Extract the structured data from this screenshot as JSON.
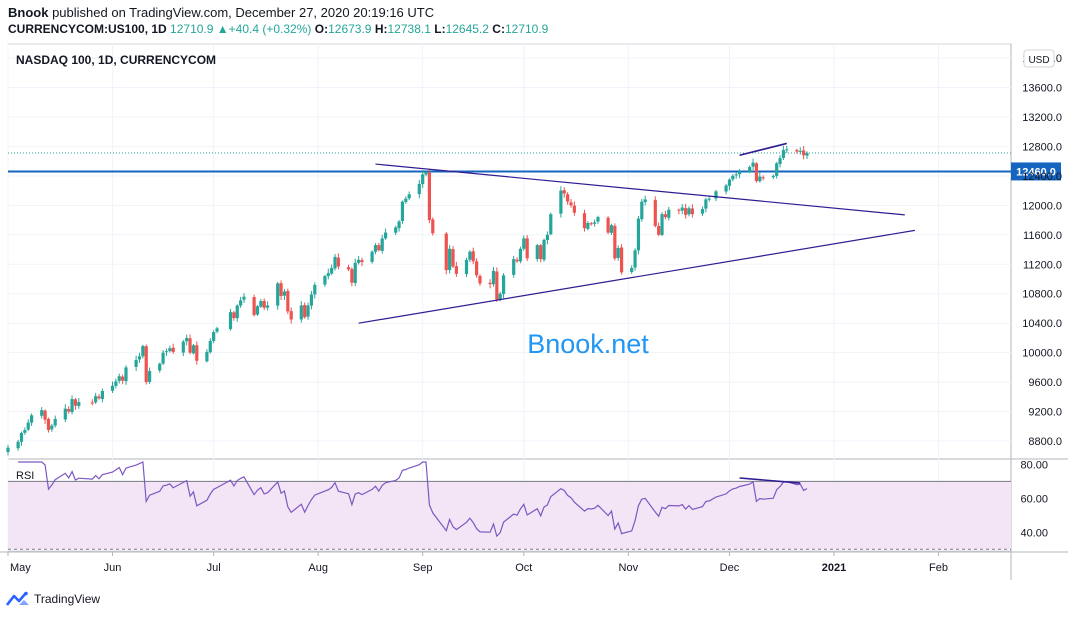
{
  "header": {
    "author": "Bnook",
    "published_text": " published on TradingView.com, December 27, 2020 20:19:16 UTC",
    "symbol": "CURRENCYCOM:US100, 1D",
    "last": "12710.9",
    "change_arrow": "▲",
    "change": "+40.4 (+0.32%)",
    "o_label": "O:",
    "o": "12673.9",
    "h_label": "H:",
    "h": "12738.1",
    "l_label": "L:",
    "l": "12645.2",
    "c_label": "C:",
    "c": "12710.9"
  },
  "footer": {
    "brand": "TradingView",
    "logo_icon": "tradingview-logo-icon"
  },
  "chart_data": [
    {
      "type": "candlestick",
      "title": "NASDAQ 100, 1D, CURRENCYCOM",
      "currency_label": "USD",
      "watermark": "Bnook.net",
      "y_ticks": [
        "8800.0",
        "9200.0",
        "9600.0",
        "10000.0",
        "10400.0",
        "10800.0",
        "11200.0",
        "11600.0",
        "12000.0",
        "12400.0",
        "12800.0",
        "13200.0",
        "13600.0",
        "14000.0"
      ],
      "y_range": [
        8570,
        14190
      ],
      "x_ticks": [
        "May",
        "Jun",
        "Jul",
        "Aug",
        "Sep",
        "Oct",
        "Nov",
        "Dec",
        "2021",
        "Feb"
      ],
      "date_range": [
        "2020-05-01",
        "2020-12-27"
      ],
      "horizontal_level": 12460.0,
      "horizontal_level_label": "12460.0",
      "last_close": 12710.9,
      "up_color": "#26a69a",
      "down_color": "#ef5350",
      "trendlines": [
        {
          "name": "descending-resistance",
          "from": [
            "2020-08-18",
            12560
          ],
          "to": [
            "2021-01-22",
            11870
          ]
        },
        {
          "name": "ascending-support",
          "from": [
            "2020-08-13",
            10400
          ],
          "to": [
            "2021-01-25",
            11660
          ]
        },
        {
          "name": "price-divergence",
          "from": [
            "2020-12-04",
            12680
          ],
          "to": [
            "2020-12-18",
            12840
          ]
        }
      ],
      "candles_close": [
        [
          "2020-05-01",
          8710
        ],
        [
          "2020-05-04",
          8790
        ],
        [
          "2020-05-05",
          8910
        ],
        [
          "2020-05-06",
          8950
        ],
        [
          "2020-05-07",
          9050
        ],
        [
          "2020-05-08",
          9150
        ],
        [
          "2020-05-11",
          9220
        ],
        [
          "2020-05-12",
          9090
        ],
        [
          "2020-05-13",
          8950
        ],
        [
          "2020-05-14",
          9010
        ],
        [
          "2020-05-15",
          9100
        ],
        [
          "2020-05-18",
          9240
        ],
        [
          "2020-05-19",
          9200
        ],
        [
          "2020-05-20",
          9370
        ],
        [
          "2020-05-21",
          9280
        ],
        [
          "2020-05-22",
          9330
        ],
        [
          "2020-05-26",
          9320
        ],
        [
          "2020-05-27",
          9410
        ],
        [
          "2020-05-28",
          9380
        ],
        [
          "2020-05-29",
          9480
        ],
        [
          "2020-06-01",
          9550
        ],
        [
          "2020-06-02",
          9610
        ],
        [
          "2020-06-03",
          9680
        ],
        [
          "2020-06-04",
          9620
        ],
        [
          "2020-06-05",
          9800
        ],
        [
          "2020-06-08",
          9900
        ],
        [
          "2020-06-09",
          9950
        ],
        [
          "2020-06-10",
          10090
        ],
        [
          "2020-06-11",
          9600
        ],
        [
          "2020-06-12",
          9750
        ],
        [
          "2020-06-15",
          9850
        ],
        [
          "2020-06-16",
          10000
        ],
        [
          "2020-06-17",
          10020
        ],
        [
          "2020-06-18",
          10060
        ],
        [
          "2020-06-19",
          10010
        ],
        [
          "2020-06-22",
          10150
        ],
        [
          "2020-06-23",
          10200
        ],
        [
          "2020-06-24",
          10000
        ],
        [
          "2020-06-25",
          10100
        ],
        [
          "2020-06-26",
          9890
        ],
        [
          "2020-06-29",
          10010
        ],
        [
          "2020-06-30",
          10160
        ],
        [
          "2020-07-01",
          10280
        ],
        [
          "2020-07-02",
          10330
        ],
        [
          "2020-07-06",
          10550
        ],
        [
          "2020-07-07",
          10470
        ],
        [
          "2020-07-08",
          10640
        ],
        [
          "2020-07-09",
          10710
        ],
        [
          "2020-07-10",
          10760
        ],
        [
          "2020-07-13",
          10510
        ],
        [
          "2020-07-14",
          10630
        ],
        [
          "2020-07-15",
          10700
        ],
        [
          "2020-07-16",
          10610
        ],
        [
          "2020-07-17",
          10640
        ],
        [
          "2020-07-20",
          10940
        ],
        [
          "2020-07-21",
          10770
        ],
        [
          "2020-07-22",
          10830
        ],
        [
          "2020-07-23",
          10560
        ],
        [
          "2020-07-24",
          10450
        ],
        [
          "2020-07-27",
          10640
        ],
        [
          "2020-07-28",
          10480
        ],
        [
          "2020-07-29",
          10640
        ],
        [
          "2020-07-30",
          10790
        ],
        [
          "2020-07-31",
          10920
        ],
        [
          "2020-08-03",
          11040
        ],
        [
          "2020-08-04",
          11080
        ],
        [
          "2020-08-05",
          11150
        ],
        [
          "2020-08-06",
          11300
        ],
        [
          "2020-08-07",
          11170
        ],
        [
          "2020-08-10",
          11130
        ],
        [
          "2020-08-11",
          10950
        ],
        [
          "2020-08-12",
          11220
        ],
        [
          "2020-08-13",
          11260
        ],
        [
          "2020-08-14",
          11230
        ],
        [
          "2020-08-17",
          11370
        ],
        [
          "2020-08-18",
          11460
        ],
        [
          "2020-08-19",
          11390
        ],
        [
          "2020-08-20",
          11550
        ],
        [
          "2020-08-21",
          11630
        ],
        [
          "2020-08-24",
          11700
        ],
        [
          "2020-08-25",
          11780
        ],
        [
          "2020-08-26",
          12050
        ],
        [
          "2020-08-27",
          12090
        ],
        [
          "2020-08-28",
          12150
        ],
        [
          "2020-08-31",
          12290
        ],
        [
          "2020-09-01",
          12420
        ],
        [
          "2020-09-02",
          12450
        ],
        [
          "2020-09-03",
          11800
        ],
        [
          "2020-09-04",
          11620
        ],
        [
          "2020-09-08",
          11120
        ],
        [
          "2020-09-09",
          11410
        ],
        [
          "2020-09-10",
          11170
        ],
        [
          "2020-09-11",
          11070
        ],
        [
          "2020-09-14",
          11260
        ],
        [
          "2020-09-15",
          11370
        ],
        [
          "2020-09-16",
          11240
        ],
        [
          "2020-09-17",
          11050
        ],
        [
          "2020-09-18",
          10940
        ],
        [
          "2020-09-21",
          10930
        ],
        [
          "2020-09-22",
          11110
        ],
        [
          "2020-09-23",
          10720
        ],
        [
          "2020-09-24",
          10800
        ],
        [
          "2020-09-25",
          11050
        ],
        [
          "2020-09-28",
          11270
        ],
        [
          "2020-09-29",
          11240
        ],
        [
          "2020-09-30",
          11410
        ],
        [
          "2020-10-01",
          11550
        ],
        [
          "2020-10-02",
          11280
        ],
        [
          "2020-10-05",
          11460
        ],
        [
          "2020-10-06",
          11270
        ],
        [
          "2020-10-07",
          11530
        ],
        [
          "2020-10-08",
          11600
        ],
        [
          "2020-10-09",
          11880
        ],
        [
          "2020-10-12",
          12200
        ],
        [
          "2020-10-13",
          12160
        ],
        [
          "2020-10-14",
          12050
        ],
        [
          "2020-10-15",
          12000
        ],
        [
          "2020-10-16",
          11900
        ],
        [
          "2020-10-19",
          11690
        ],
        [
          "2020-10-20",
          11760
        ],
        [
          "2020-10-21",
          11750
        ],
        [
          "2020-10-22",
          11770
        ],
        [
          "2020-10-23",
          11840
        ],
        [
          "2020-10-26",
          11630
        ],
        [
          "2020-10-27",
          11730
        ],
        [
          "2020-10-28",
          11280
        ],
        [
          "2020-10-29",
          11420
        ],
        [
          "2020-10-30",
          11090
        ],
        [
          "2020-11-02",
          11150
        ],
        [
          "2020-11-03",
          11390
        ],
        [
          "2020-11-04",
          11820
        ],
        [
          "2020-11-05",
          12050
        ],
        [
          "2020-11-06",
          12080
        ],
        [
          "2020-11-09",
          11720
        ],
        [
          "2020-11-10",
          11600
        ],
        [
          "2020-11-11",
          11880
        ],
        [
          "2020-11-12",
          11840
        ],
        [
          "2020-11-13",
          11940
        ],
        [
          "2020-11-16",
          11930
        ],
        [
          "2020-11-17",
          11970
        ],
        [
          "2020-11-18",
          11870
        ],
        [
          "2020-11-19",
          11960
        ],
        [
          "2020-11-20",
          11880
        ],
        [
          "2020-11-23",
          11950
        ],
        [
          "2020-11-24",
          12080
        ],
        [
          "2020-11-25",
          12090
        ],
        [
          "2020-11-27",
          12190
        ],
        [
          "2020-11-30",
          12270
        ],
        [
          "2020-12-01",
          12350
        ],
        [
          "2020-12-02",
          12400
        ],
        [
          "2020-12-03",
          12420
        ],
        [
          "2020-12-04",
          12460
        ],
        [
          "2020-12-07",
          12520
        ],
        [
          "2020-12-08",
          12580
        ],
        [
          "2020-12-09",
          12330
        ],
        [
          "2020-12-10",
          12390
        ],
        [
          "2020-12-11",
          12380
        ],
        [
          "2020-12-14",
          12400
        ],
        [
          "2020-12-15",
          12570
        ],
        [
          "2020-12-16",
          12640
        ],
        [
          "2020-12-17",
          12750
        ],
        [
          "2020-12-18",
          12760
        ],
        [
          "2020-12-21",
          12730
        ],
        [
          "2020-12-22",
          12740
        ],
        [
          "2020-12-23",
          12680
        ],
        [
          "2020-12-24",
          12710
        ]
      ]
    },
    {
      "type": "line",
      "title": "RSI",
      "y_ticks": [
        "40.00",
        "60.00",
        "80.00"
      ],
      "y_range": [
        29,
        82.6
      ],
      "bands": [
        30,
        70
      ],
      "line_color": "#7e57c2",
      "band_fill": "#f3e5f5",
      "divergence_line": {
        "from": [
          "2020-12-04",
          72
        ],
        "to": [
          "2020-12-22",
          69
        ]
      }
    }
  ]
}
